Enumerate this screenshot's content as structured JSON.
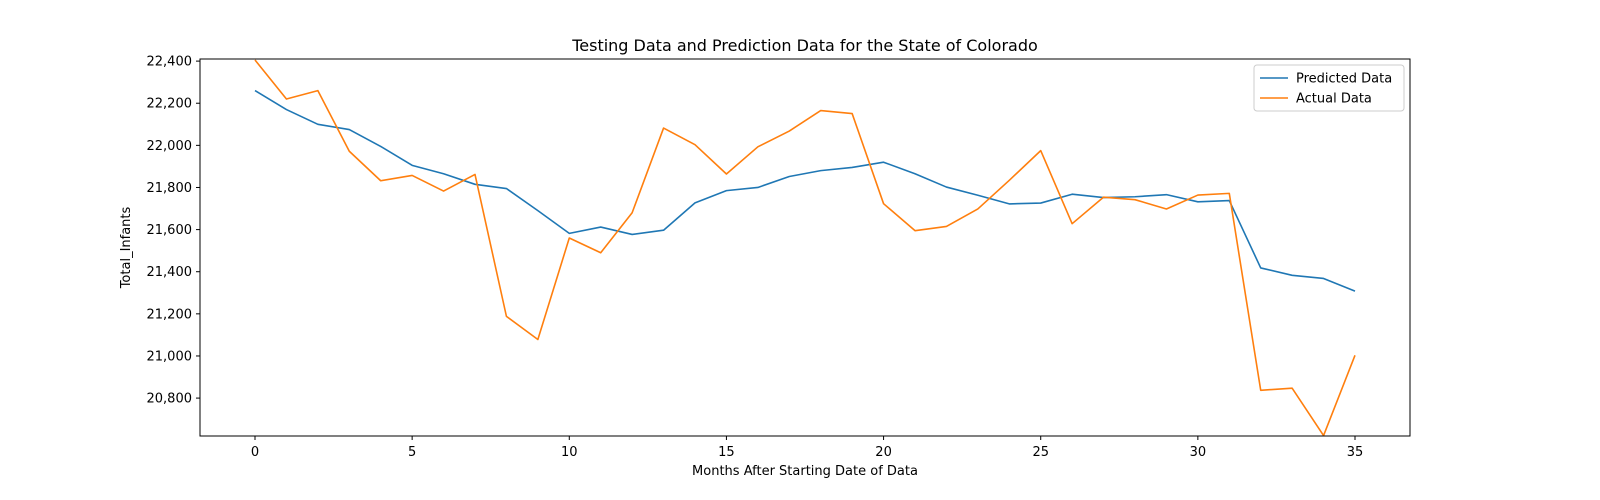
{
  "chart_data": {
    "type": "line",
    "title": "Testing Data and Prediction Data for the State of Colorado",
    "xlabel": "Months After Starting Date of Data",
    "ylabel": "Total_Infants",
    "xlim": [
      -1.75,
      36.75
    ],
    "ylim": [
      20620,
      22410
    ],
    "xticks": [
      0,
      5,
      10,
      15,
      20,
      25,
      30,
      35
    ],
    "yticks": [
      20800,
      21000,
      21200,
      21400,
      21600,
      21800,
      22000,
      22200,
      22400
    ],
    "ytick_labels": [
      "20,800",
      "21,000",
      "21,200",
      "21,400",
      "21,600",
      "21,800",
      "22,000",
      "22,200",
      "22,400"
    ],
    "grid": false,
    "legend_position": "top-right",
    "x": [
      0,
      1,
      2,
      3,
      4,
      5,
      6,
      7,
      8,
      9,
      10,
      11,
      12,
      13,
      14,
      15,
      16,
      17,
      18,
      19,
      20,
      21,
      22,
      23,
      24,
      25,
      26,
      27,
      28,
      29,
      30,
      31,
      32,
      33,
      34,
      35
    ],
    "series": [
      {
        "name": "Predicted Data",
        "color": "#1f77b4",
        "values": [
          22260,
          22170,
          22100,
          22075,
          21995,
          21905,
          21865,
          21815,
          21795,
          21690,
          21582,
          21612,
          21577,
          21597,
          21727,
          21785,
          21800,
          21852,
          21880,
          21895,
          21920,
          21865,
          21802,
          21763,
          21722,
          21726,
          21768,
          21752,
          21756,
          21766,
          21732,
          21738,
          21418,
          21383,
          21368,
          21308
        ]
      },
      {
        "name": "Actual Data",
        "color": "#ff7f0e",
        "values": [
          22405,
          22220,
          22260,
          21972,
          21832,
          21857,
          21783,
          21862,
          21188,
          21078,
          21560,
          21490,
          21680,
          22082,
          22003,
          21864,
          21993,
          22068,
          22165,
          22151,
          21723,
          21595,
          21615,
          21698,
          21834,
          21975,
          21628,
          21754,
          21742,
          21698,
          21764,
          21772,
          20837,
          20847,
          20622,
          21003
        ]
      }
    ]
  }
}
